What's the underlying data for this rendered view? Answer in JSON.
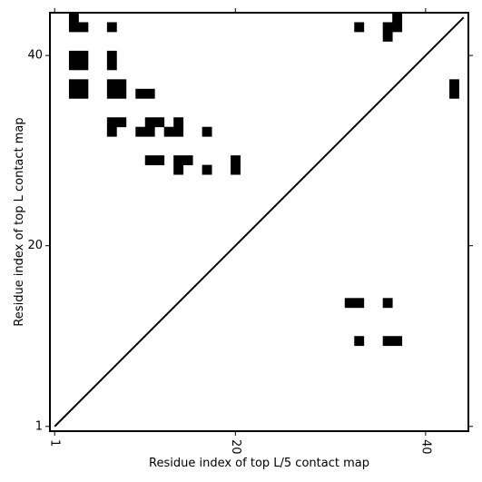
{
  "chart_data": {
    "type": "heatmap",
    "title": "",
    "xlabel": "Residue index of top L/5 contact map",
    "ylabel": "Residue index of top L contact map",
    "xlim": [
      0.5,
      44.5
    ],
    "ylim": [
      0.5,
      44.5
    ],
    "x_ticks": [
      1,
      20,
      40
    ],
    "y_ticks": [
      1,
      20,
      40
    ],
    "x_tick_labels": [
      "1",
      "20",
      "40"
    ],
    "y_tick_labels": [
      "1",
      "20",
      "40"
    ],
    "x_tick_rotation": -90,
    "grid": false,
    "colors": {
      "cell": "#000000",
      "background": "#ffffff",
      "diagonal": "#000000"
    },
    "diagonal": {
      "from": [
        1,
        1
      ],
      "to": [
        44,
        44
      ]
    },
    "cells": [
      [
        3,
        44
      ],
      [
        3,
        43
      ],
      [
        4,
        43
      ],
      [
        7,
        43
      ],
      [
        33,
        43
      ],
      [
        37,
        44
      ],
      [
        37,
        43
      ],
      [
        36,
        43
      ],
      [
        36,
        42
      ],
      [
        3,
        40
      ],
      [
        4,
        40
      ],
      [
        3,
        39
      ],
      [
        4,
        39
      ],
      [
        7,
        40
      ],
      [
        7,
        39
      ],
      [
        3,
        37
      ],
      [
        4,
        37
      ],
      [
        3,
        36
      ],
      [
        4,
        36
      ],
      [
        7,
        37
      ],
      [
        8,
        37
      ],
      [
        7,
        36
      ],
      [
        8,
        36
      ],
      [
        10,
        36
      ],
      [
        11,
        36
      ],
      [
        43,
        37
      ],
      [
        43,
        36
      ],
      [
        7,
        33
      ],
      [
        8,
        33
      ],
      [
        11,
        33
      ],
      [
        12,
        33
      ],
      [
        14,
        33
      ],
      [
        7,
        32
      ],
      [
        10,
        32
      ],
      [
        11,
        32
      ],
      [
        13,
        32
      ],
      [
        14,
        32
      ],
      [
        17,
        32
      ],
      [
        11,
        29
      ],
      [
        12,
        29
      ],
      [
        14,
        29
      ],
      [
        15,
        29
      ],
      [
        20,
        29
      ],
      [
        14,
        28
      ],
      [
        17,
        28
      ],
      [
        20,
        28
      ],
      [
        32,
        14
      ],
      [
        33,
        14
      ],
      [
        36,
        14
      ],
      [
        33,
        10
      ],
      [
        36,
        10
      ],
      [
        37,
        10
      ]
    ]
  }
}
